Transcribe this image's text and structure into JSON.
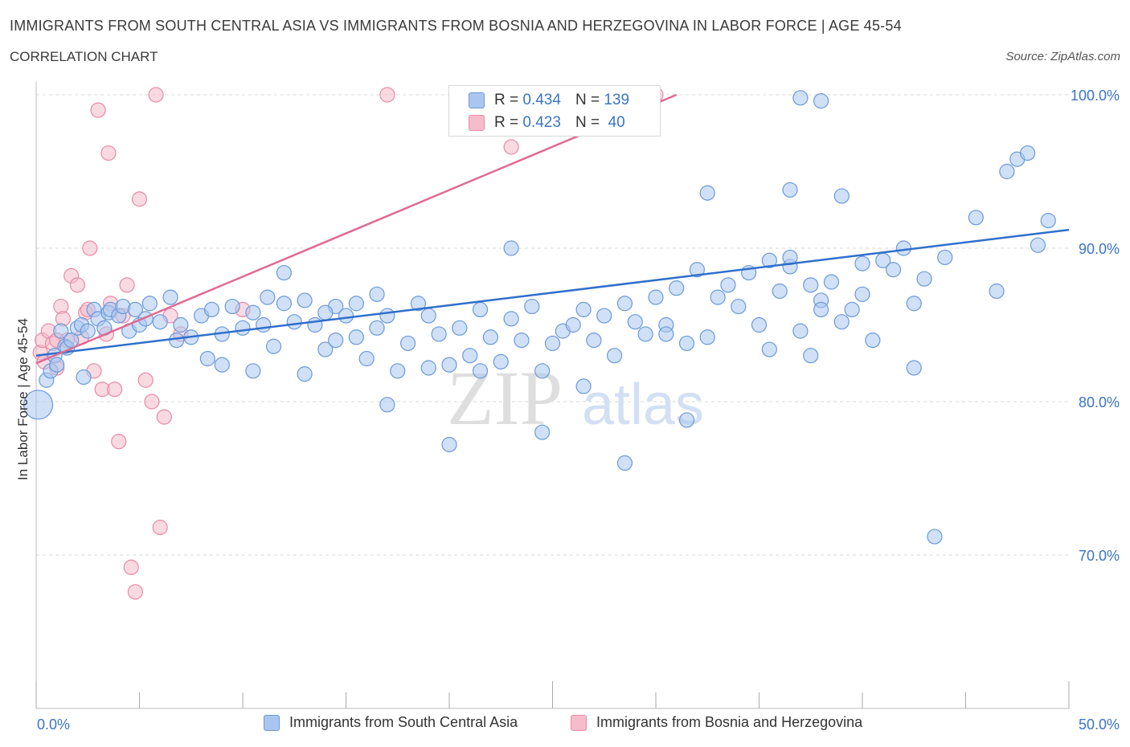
{
  "title": "IMMIGRANTS FROM SOUTH CENTRAL ASIA VS IMMIGRANTS FROM BOSNIA AND HERZEGOVINA IN LABOR FORCE | AGE 45-54",
  "subtitle": "CORRELATION CHART",
  "source": "Source: ZipAtlas.com",
  "watermark": {
    "zip": "ZIP",
    "atlas": "atlas"
  },
  "legend": {
    "r_label": "R =",
    "n_label": "N =",
    "rows": [
      {
        "r": "0.434",
        "n": "139"
      },
      {
        "r": "0.423",
        "n": "40"
      }
    ]
  },
  "colors": {
    "blue_fill": "#a9c6f0",
    "blue_stroke": "#6b9ad8",
    "blue_line": "#2f6fcc",
    "pink_fill": "#f6bccb",
    "pink_stroke": "#e98aa6",
    "pink_line": "#e06a92",
    "axis_text": "#3b74c6",
    "grid": "#d9d9d9"
  },
  "chart_data": {
    "type": "scatter",
    "title": "IMMIGRANTS FROM SOUTH CENTRAL ASIA VS IMMIGRANTS FROM BOSNIA AND HERZEGOVINA IN LABOR FORCE | AGE 45-54",
    "xlabel": "",
    "ylabel": "In Labor Force | Age 45-54",
    "xlim": [
      0,
      50
    ],
    "ylim": [
      60,
      100
    ],
    "x_tick_labels": [
      "0.0%",
      "50.0%"
    ],
    "y_ticks": [
      70,
      80,
      90,
      100
    ],
    "y_tick_labels": [
      "70.0%",
      "80.0%",
      "90.0%",
      "100.0%"
    ],
    "grid": true,
    "legend_position": "top-center",
    "series": [
      {
        "name": "Immigrants from South Central Asia",
        "color": "#a9c6f0",
        "trend": {
          "x": [
            0,
            50
          ],
          "y": [
            83.0,
            91.2
          ]
        },
        "points": [
          [
            0.1,
            79.8
          ],
          [
            0.5,
            81.4
          ],
          [
            0.7,
            82.0
          ],
          [
            0.9,
            83.0
          ],
          [
            1.0,
            82.4
          ],
          [
            1.2,
            84.6
          ],
          [
            1.4,
            83.6
          ],
          [
            1.5,
            83.5
          ],
          [
            1.7,
            84.0
          ],
          [
            2.0,
            84.8
          ],
          [
            2.2,
            85.0
          ],
          [
            2.3,
            81.6
          ],
          [
            2.5,
            84.6
          ],
          [
            2.8,
            86.0
          ],
          [
            3.0,
            85.4
          ],
          [
            3.3,
            84.8
          ],
          [
            3.5,
            85.8
          ],
          [
            3.6,
            86.0
          ],
          [
            4.0,
            85.6
          ],
          [
            4.2,
            86.2
          ],
          [
            4.5,
            84.6
          ],
          [
            4.8,
            86.0
          ],
          [
            5.0,
            85.0
          ],
          [
            5.3,
            85.4
          ],
          [
            5.5,
            86.4
          ],
          [
            6.0,
            85.2
          ],
          [
            6.5,
            86.8
          ],
          [
            7.0,
            85.0
          ],
          [
            7.5,
            84.2
          ],
          [
            8.0,
            85.6
          ],
          [
            8.5,
            86.0
          ],
          [
            9.0,
            84.4
          ],
          [
            9.5,
            86.2
          ],
          [
            10.0,
            84.8
          ],
          [
            10.5,
            85.8
          ],
          [
            11.0,
            85.0
          ],
          [
            11.5,
            83.6
          ],
          [
            12.0,
            86.4
          ],
          [
            12.5,
            85.2
          ],
          [
            13.0,
            86.6
          ],
          [
            13.5,
            85.0
          ],
          [
            14.0,
            83.4
          ],
          [
            14.5,
            86.2
          ],
          [
            15.0,
            85.6
          ],
          [
            15.5,
            84.2
          ],
          [
            16.0,
            82.8
          ],
          [
            16.5,
            84.8
          ],
          [
            17.0,
            85.6
          ],
          [
            17.5,
            82.0
          ],
          [
            18.0,
            83.8
          ],
          [
            18.5,
            86.4
          ],
          [
            19.0,
            85.6
          ],
          [
            19.5,
            84.4
          ],
          [
            20.0,
            82.4
          ],
          [
            20.5,
            84.8
          ],
          [
            21.0,
            83.0
          ],
          [
            21.5,
            86.0
          ],
          [
            22.0,
            84.2
          ],
          [
            22.5,
            82.6
          ],
          [
            23.0,
            85.4
          ],
          [
            23.5,
            84.0
          ],
          [
            24.0,
            86.2
          ],
          [
            24.5,
            82.0
          ],
          [
            25.0,
            83.8
          ],
          [
            25.5,
            84.6
          ],
          [
            26.0,
            85.0
          ],
          [
            26.5,
            86.0
          ],
          [
            27.0,
            84.0
          ],
          [
            27.5,
            85.6
          ],
          [
            28.0,
            83.0
          ],
          [
            28.5,
            86.4
          ],
          [
            29.0,
            85.2
          ],
          [
            29.5,
            84.4
          ],
          [
            30.0,
            86.8
          ],
          [
            30.5,
            85.0
          ],
          [
            31.0,
            87.4
          ],
          [
            31.5,
            83.8
          ],
          [
            32.0,
            88.6
          ],
          [
            32.5,
            84.2
          ],
          [
            33.0,
            86.8
          ],
          [
            33.5,
            87.6
          ],
          [
            34.0,
            86.2
          ],
          [
            34.5,
            88.4
          ],
          [
            35.0,
            85.0
          ],
          [
            35.5,
            83.4
          ],
          [
            36.0,
            87.2
          ],
          [
            36.5,
            88.8
          ],
          [
            37.0,
            84.6
          ],
          [
            37.5,
            83.0
          ],
          [
            38.0,
            86.6
          ],
          [
            38.5,
            87.8
          ],
          [
            39.0,
            85.2
          ],
          [
            39.5,
            86.0
          ],
          [
            40.0,
            87.0
          ],
          [
            40.5,
            84.0
          ],
          [
            41.0,
            89.2
          ],
          [
            41.5,
            88.6
          ],
          [
            42.0,
            90.0
          ],
          [
            42.5,
            86.4
          ],
          [
            43.0,
            88.0
          ],
          [
            6.8,
            84.0
          ],
          [
            8.3,
            82.8
          ],
          [
            10.5,
            82.0
          ],
          [
            12.0,
            88.4
          ],
          [
            13.0,
            81.8
          ],
          [
            14.5,
            84.0
          ],
          [
            16.5,
            87.0
          ],
          [
            17.0,
            79.8
          ],
          [
            19.0,
            82.2
          ],
          [
            21.5,
            82.0
          ],
          [
            23.0,
            90.0
          ],
          [
            24.5,
            78.0
          ],
          [
            26.5,
            81.0
          ],
          [
            28.5,
            76.0
          ],
          [
            31.5,
            78.8
          ],
          [
            32.5,
            93.6
          ],
          [
            35.5,
            89.2
          ],
          [
            36.5,
            89.4
          ],
          [
            37.5,
            87.6
          ],
          [
            39.0,
            93.4
          ],
          [
            40.0,
            89.0
          ],
          [
            42.5,
            82.2
          ],
          [
            44.0,
            89.4
          ],
          [
            45.5,
            92.0
          ],
          [
            46.5,
            87.2
          ],
          [
            47.0,
            95.0
          ],
          [
            47.5,
            95.8
          ],
          [
            48.0,
            96.2
          ],
          [
            48.5,
            90.2
          ],
          [
            49.0,
            91.8
          ],
          [
            36.5,
            93.8
          ],
          [
            37.0,
            99.8
          ],
          [
            38.0,
            99.6
          ],
          [
            43.5,
            71.2
          ],
          [
            38.0,
            86.0
          ],
          [
            30.5,
            84.4
          ],
          [
            20.0,
            77.2
          ],
          [
            15.5,
            86.4
          ],
          [
            11.2,
            86.8
          ],
          [
            9.0,
            82.4
          ],
          [
            14.0,
            85.8
          ]
        ]
      },
      {
        "name": "Immigrants from Bosnia and Herzegovina",
        "color": "#f6bccb",
        "trend": {
          "x": [
            0,
            31
          ],
          "y": [
            82.5,
            100
          ]
        },
        "points": [
          [
            0.2,
            83.2
          ],
          [
            0.3,
            84.0
          ],
          [
            0.4,
            82.6
          ],
          [
            0.6,
            84.6
          ],
          [
            0.8,
            83.8
          ],
          [
            1.0,
            82.2
          ],
          [
            1.2,
            86.2
          ],
          [
            1.3,
            85.4
          ],
          [
            1.5,
            84.0
          ],
          [
            1.7,
            88.2
          ],
          [
            2.0,
            87.6
          ],
          [
            2.2,
            84.2
          ],
          [
            2.4,
            85.8
          ],
          [
            2.6,
            90.0
          ],
          [
            2.8,
            82.0
          ],
          [
            3.0,
            99.0
          ],
          [
            3.2,
            80.8
          ],
          [
            3.4,
            84.4
          ],
          [
            3.5,
            96.2
          ],
          [
            3.6,
            86.4
          ],
          [
            3.8,
            80.8
          ],
          [
            4.0,
            77.4
          ],
          [
            4.2,
            85.6
          ],
          [
            4.4,
            87.6
          ],
          [
            4.6,
            69.2
          ],
          [
            4.8,
            67.6
          ],
          [
            5.0,
            93.2
          ],
          [
            5.3,
            81.4
          ],
          [
            5.6,
            80.0
          ],
          [
            5.8,
            100.0
          ],
          [
            6.0,
            71.8
          ],
          [
            6.2,
            79.0
          ],
          [
            6.5,
            85.6
          ],
          [
            7.0,
            84.4
          ],
          [
            10.0,
            86.0
          ],
          [
            17.0,
            100.0
          ],
          [
            23.0,
            96.6
          ],
          [
            30.0,
            100.0
          ],
          [
            1.0,
            84.0
          ],
          [
            2.5,
            86.0
          ]
        ]
      }
    ]
  }
}
